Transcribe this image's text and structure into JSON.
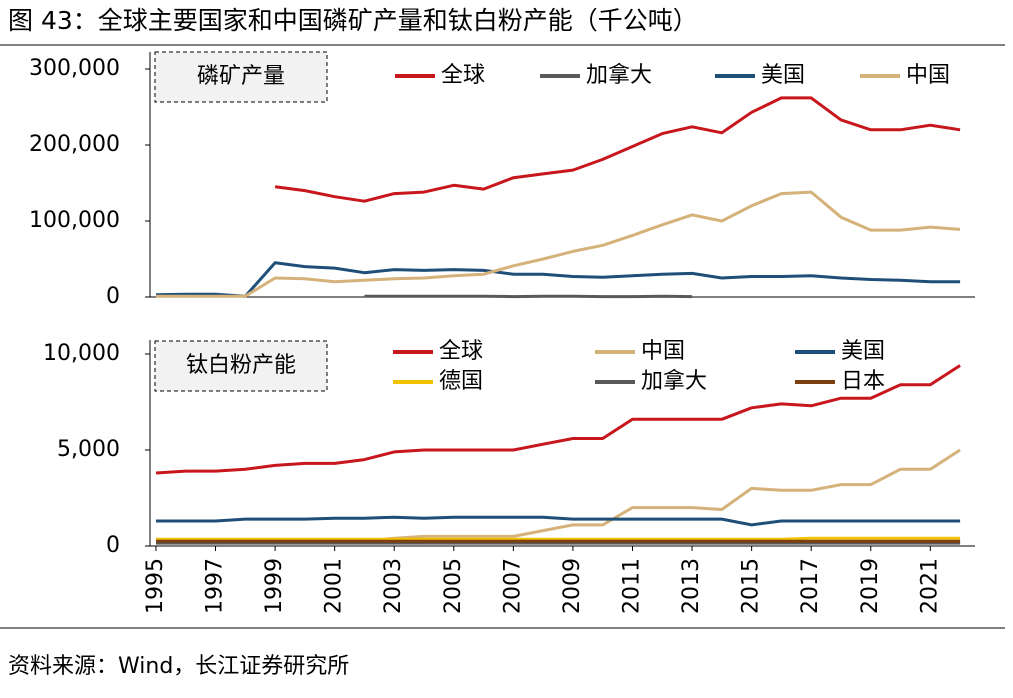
{
  "title": "图 43：全球主要国家和中国磷矿产量和钛白粉产能（千公吨）",
  "source": "资料来源：Wind，长江证券研究所",
  "chart_data": [
    {
      "type": "line",
      "title": "磷矿产量",
      "x": [
        1995,
        1996,
        1997,
        1998,
        1999,
        2000,
        2001,
        2002,
        2003,
        2004,
        2005,
        2006,
        2007,
        2008,
        2009,
        2010,
        2011,
        2012,
        2013,
        2014,
        2015,
        2016,
        2017,
        2018,
        2019,
        2020,
        2021,
        2022
      ],
      "xlim": [
        1994.8,
        2022.5
      ],
      "ylim": [
        0,
        300000
      ],
      "yticks": [
        0,
        {
          "value": 100000,
          "label": "100,000"
        },
        {
          "value": 200000,
          "label": "200,000"
        },
        {
          "value": 300000,
          "label": "300,000"
        }
      ],
      "series": [
        {
          "name": "全球",
          "color": "#c8161d",
          "values": [
            null,
            null,
            null,
            null,
            145000,
            140000,
            132000,
            126000,
            136000,
            138000,
            147000,
            142000,
            157000,
            162000,
            167000,
            181000,
            198000,
            215000,
            224000,
            216000,
            243000,
            262000,
            262000,
            233000,
            220000,
            220000,
            226000,
            220000
          ]
        },
        {
          "name": "加拿大",
          "color": "#595959",
          "values": [
            null,
            null,
            null,
            null,
            null,
            null,
            null,
            1000,
            1000,
            1000,
            1000,
            1000,
            500,
            1000,
            1000,
            500,
            500,
            1000,
            500,
            null,
            null,
            null,
            null,
            null,
            null,
            null,
            null,
            null
          ]
        },
        {
          "name": "美国",
          "color": "#1f4e79",
          "values": [
            3000,
            3500,
            3500,
            1000,
            45000,
            40000,
            38000,
            32000,
            36000,
            35000,
            36000,
            35000,
            30000,
            30000,
            27000,
            26000,
            28000,
            30000,
            31000,
            25000,
            27000,
            27000,
            28000,
            25000,
            23000,
            22000,
            20000,
            20000
          ]
        },
        {
          "name": "中国",
          "color": "#d4b27a",
          "values": [
            1000,
            1000,
            1000,
            1000,
            25000,
            24000,
            20000,
            22000,
            24000,
            25000,
            28000,
            30000,
            41000,
            50000,
            60000,
            68000,
            81000,
            95000,
            108000,
            100000,
            120000,
            136000,
            138000,
            105000,
            88000,
            88000,
            92000,
            89000
          ]
        }
      ]
    },
    {
      "type": "line",
      "title": "钛白粉产能",
      "x": [
        1995,
        1996,
        1997,
        1998,
        1999,
        2000,
        2001,
        2002,
        2003,
        2004,
        2005,
        2006,
        2007,
        2008,
        2009,
        2010,
        2011,
        2012,
        2013,
        2014,
        2015,
        2016,
        2017,
        2018,
        2019,
        2020,
        2021,
        2022
      ],
      "xlim": [
        1994.8,
        2022.5
      ],
      "xticks": [
        1995,
        1997,
        1999,
        2001,
        2003,
        2005,
        2007,
        2009,
        2011,
        2013,
        2015,
        2017,
        2019,
        2021
      ],
      "ylim": [
        0,
        10000
      ],
      "yticks": [
        0,
        {
          "value": 5000,
          "label": "5,000"
        },
        {
          "value": 10000,
          "label": "10,000"
        }
      ],
      "series": [
        {
          "name": "全球",
          "color": "#c8161d",
          "values": [
            3800,
            3900,
            3900,
            4000,
            4200,
            4300,
            4300,
            4500,
            4900,
            5000,
            5000,
            5000,
            5000,
            5300,
            5600,
            5600,
            6600,
            6600,
            6600,
            6600,
            7200,
            7400,
            7300,
            7700,
            7700,
            8400,
            8400,
            9400
          ]
        },
        {
          "name": "中国",
          "color": "#d4b27a",
          "values": [
            200,
            200,
            200,
            200,
            200,
            200,
            200,
            250,
            400,
            500,
            500,
            500,
            500,
            800,
            1100,
            1100,
            2000,
            2000,
            2000,
            1900,
            3000,
            2900,
            2900,
            3200,
            3200,
            4000,
            4000,
            5000
          ]
        },
        {
          "name": "美国",
          "color": "#1f4e79",
          "values": [
            1300,
            1300,
            1300,
            1400,
            1400,
            1400,
            1450,
            1450,
            1500,
            1450,
            1500,
            1500,
            1500,
            1500,
            1400,
            1400,
            1400,
            1400,
            1400,
            1400,
            1100,
            1300,
            1300,
            1300,
            1300,
            1300,
            1300,
            1300
          ]
        },
        {
          "name": "德国",
          "color": "#f2c200",
          "values": [
            350,
            350,
            350,
            350,
            350,
            350,
            350,
            350,
            350,
            350,
            350,
            350,
            350,
            350,
            350,
            350,
            350,
            350,
            350,
            350,
            350,
            350,
            400,
            400,
            400,
            400,
            400,
            400
          ]
        },
        {
          "name": "加拿大",
          "color": "#595959",
          "values": [
            150,
            150,
            150,
            150,
            150,
            150,
            150,
            150,
            150,
            150,
            150,
            150,
            150,
            150,
            150,
            150,
            150,
            150,
            150,
            150,
            150,
            150,
            150,
            150,
            150,
            150,
            150,
            150
          ]
        },
        {
          "name": "日本",
          "color": "#7b3f10",
          "values": [
            250,
            250,
            250,
            250,
            250,
            250,
            250,
            250,
            250,
            250,
            250,
            250,
            250,
            250,
            250,
            250,
            250,
            250,
            250,
            250,
            250,
            250,
            250,
            250,
            250,
            250,
            250,
            250
          ]
        }
      ]
    }
  ]
}
